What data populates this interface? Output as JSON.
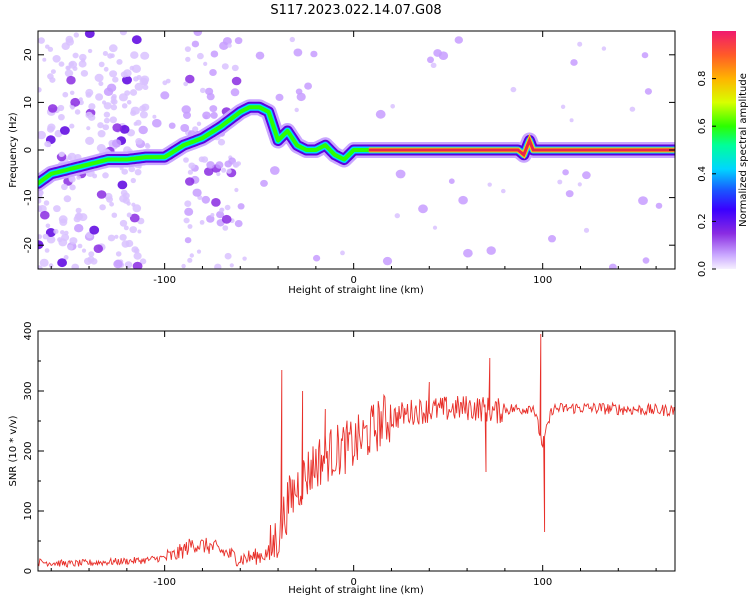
{
  "title": "S117.2023.022.14.07.G08",
  "colors": {
    "snr_line": "#e8302a",
    "track_core": "#e8244a",
    "scatter_purple": "#8a2be2"
  },
  "chart_data": [
    {
      "type": "heatmap",
      "name": "spectrogram",
      "xlabel": "Height of straight line (km)",
      "ylabel": "Frequency (Hz)",
      "xlim": [
        -167,
        170
      ],
      "ylim": [
        -25,
        25
      ],
      "x_ticks": [
        -100,
        0,
        100
      ],
      "y_ticks": [
        -20,
        -10,
        0,
        10,
        20
      ],
      "grid": false,
      "ridge": {
        "x": [
          -167,
          -160,
          -150,
          -140,
          -130,
          -120,
          -110,
          -100,
          -90,
          -80,
          -70,
          -60,
          -55,
          -50,
          -45,
          -40,
          -35,
          -30,
          -25,
          -20,
          -15,
          -10,
          -5,
          0,
          10,
          20,
          30,
          40,
          50,
          60,
          70,
          80,
          87,
          90,
          93,
          95,
          100,
          120,
          140,
          160,
          170
        ],
        "y": [
          -7,
          -5,
          -4,
          -3,
          -2,
          -2,
          -1.5,
          -1.5,
          1,
          2.5,
          5,
          8,
          9,
          9,
          8,
          2,
          4,
          1,
          0,
          0,
          1,
          -1,
          -2,
          0,
          0,
          0,
          0,
          0,
          0,
          0,
          0,
          0,
          0,
          -1,
          2,
          0,
          0,
          0,
          0,
          0,
          0
        ]
      },
      "colorbar": {
        "label": "Normalized spectral amplitude",
        "ticks": [
          "0.0",
          "0.2",
          "0.4",
          "0.6",
          "0.8"
        ],
        "range": [
          0,
          1
        ]
      }
    },
    {
      "type": "line",
      "name": "snr",
      "xlabel": "Height of straight line (km)",
      "ylabel": "SNR (10 * v/v)",
      "xlim": [
        -167,
        170
      ],
      "ylim": [
        0,
        400
      ],
      "x_ticks": [
        -100,
        0,
        100
      ],
      "y_ticks": [
        0,
        100,
        200,
        300,
        400
      ],
      "grid": false,
      "series": [
        {
          "x": [
            -167,
            -150,
            -130,
            -110,
            -95,
            -85,
            -75,
            -60,
            -50,
            -45,
            -40,
            -35,
            -30,
            -25,
            -20,
            -10,
            0,
            10,
            15,
            20,
            30,
            40,
            50,
            60,
            70,
            75,
            80,
            90,
            95,
            100,
            105,
            120,
            140,
            160,
            170
          ],
          "y": [
            15,
            12,
            15,
            18,
            25,
            45,
            40,
            20,
            25,
            30,
            60,
            110,
            140,
            160,
            180,
            200,
            210,
            235,
            250,
            255,
            265,
            268,
            270,
            272,
            270,
            265,
            270,
            270,
            275,
            210,
            270,
            272,
            270,
            268,
            268
          ],
          "spikes": [
            {
              "x": -38,
              "y": 335
            },
            {
              "x": -27,
              "y": 300
            },
            {
              "x": 72,
              "y": 355
            },
            {
              "x": 99,
              "y": 395
            },
            {
              "x": 101,
              "y": 65
            },
            {
              "x": 40,
              "y": 315
            },
            {
              "x": -15,
              "y": 270
            },
            {
              "x": 70,
              "y": 165
            }
          ]
        }
      ]
    }
  ]
}
